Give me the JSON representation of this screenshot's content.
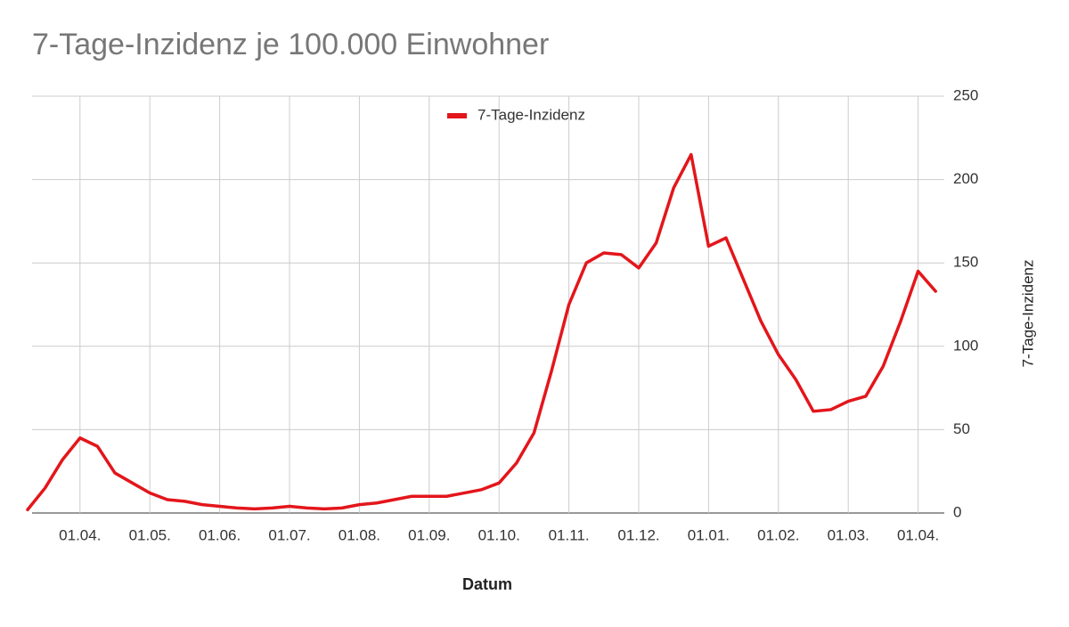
{
  "chart_data": {
    "type": "line",
    "title": "7-Tage-Inzidenz je 100.000 Einwohner",
    "x_label": "Datum",
    "y_label": "7-Tage-Inzidenz",
    "categories": [
      null,
      null,
      null,
      "01.04.",
      null,
      null,
      null,
      "01.05.",
      null,
      null,
      null,
      "01.06.",
      null,
      null,
      null,
      "01.07.",
      null,
      null,
      null,
      "01.08.",
      null,
      null,
      null,
      "01.09.",
      null,
      null,
      null,
      "01.10.",
      null,
      null,
      null,
      "01.11.",
      null,
      null,
      null,
      "01.12.",
      null,
      null,
      null,
      "01.01.",
      null,
      null,
      null,
      "01.02.",
      null,
      null,
      null,
      "01.03.",
      null,
      null,
      null,
      "01.04.",
      null
    ],
    "series": [
      {
        "name": "7-Tage-Inzidenz",
        "color": "#e3161b",
        "values": [
          2,
          15,
          32,
          45,
          40,
          24,
          18,
          12,
          8,
          7,
          5,
          4,
          3,
          2.5,
          3,
          4,
          3,
          2.5,
          3,
          5,
          6,
          8,
          10,
          10,
          10,
          12,
          14,
          18,
          30,
          48,
          85,
          125,
          150,
          156,
          155,
          147,
          162,
          195,
          215,
          160,
          165,
          140,
          115,
          95,
          80,
          61,
          62,
          67,
          70,
          88,
          115,
          145,
          133
        ]
      }
    ],
    "ylim": [
      0,
      250
    ],
    "yticks": [
      0,
      50,
      100,
      150,
      200,
      250
    ],
    "grid": true,
    "legend": "top"
  }
}
